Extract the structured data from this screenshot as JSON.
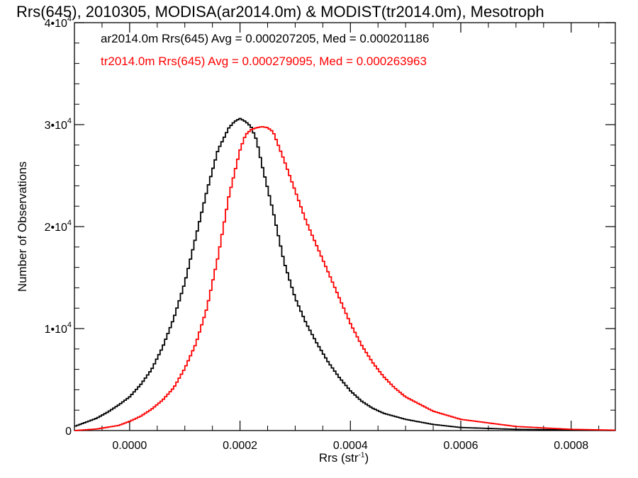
{
  "chart_data": {
    "type": "line",
    "title": "Rrs(645), 2010305, MODISA(ar2014.0m) & MODIST(tr2014.0m), Mesotroph",
    "xlabel": "Rrs (str",
    "xlabel_sup": "-1",
    "xlabel_end": ")",
    "ylabel": "Number of Observations",
    "xlim": [
      -0.0001,
      0.00088
    ],
    "ylim": [
      0,
      40000
    ],
    "x_ticks": [
      {
        "value": 0.0,
        "label": "0.0000"
      },
      {
        "value": 0.0002,
        "label": "0.0002"
      },
      {
        "value": 0.0004,
        "label": "0.0004"
      },
      {
        "value": 0.0006,
        "label": "0.0006"
      },
      {
        "value": 0.0008,
        "label": "0.0008"
      }
    ],
    "y_ticks": [
      {
        "value": 0,
        "mant": "0",
        "exp": ""
      },
      {
        "value": 10000,
        "mant": "1•10",
        "exp": "4"
      },
      {
        "value": 20000,
        "mant": "2•10",
        "exp": "4"
      },
      {
        "value": 30000,
        "mant": "3•10",
        "exp": "4"
      },
      {
        "value": 40000,
        "mant": "4•10",
        "exp": "4"
      }
    ],
    "grid": false,
    "legend_position": "top-left",
    "series": [
      {
        "name": "ar2014.0m Rrs(645) Avg = 0.000207205, Med = 0.000201186",
        "color": "#000000",
        "x": [
          -0.0001,
          -8e-05,
          -6e-05,
          -4e-05,
          -2e-05,
          0.0,
          2e-05,
          4e-05,
          6e-05,
          8e-05,
          0.0001,
          0.00012,
          0.00014,
          0.00016,
          0.00018,
          0.00019,
          0.0002,
          0.00021,
          0.00022,
          0.00023,
          0.00024,
          0.00026,
          0.00028,
          0.0003,
          0.00032,
          0.00034,
          0.00036,
          0.00038,
          0.0004,
          0.00042,
          0.00044,
          0.00046,
          0.0005,
          0.00055,
          0.0006,
          0.0007,
          0.00088
        ],
        "y": [
          400,
          800,
          1200,
          1800,
          2500,
          3300,
          4500,
          6000,
          8200,
          11000,
          14500,
          19000,
          23500,
          27500,
          29700,
          30300,
          30600,
          30300,
          29800,
          28500,
          26000,
          21500,
          16500,
          13000,
          10500,
          8500,
          6700,
          5200,
          3900,
          2900,
          2200,
          1700,
          1100,
          600,
          300,
          120,
          30
        ]
      },
      {
        "name": "tr2014.0m Rrs(645) Avg = 0.000279095, Med = 0.000263963",
        "color": "#ff0000",
        "x": [
          -0.0001,
          -6e-05,
          -2e-05,
          0.0,
          2e-05,
          4e-05,
          6e-05,
          8e-05,
          0.0001,
          0.00012,
          0.00014,
          0.00016,
          0.00018,
          0.0002,
          0.00021,
          0.00022,
          0.00023,
          0.00024,
          0.00025,
          0.00026,
          0.00028,
          0.0003,
          0.00032,
          0.00034,
          0.00036,
          0.00038,
          0.0004,
          0.00042,
          0.00044,
          0.00046,
          0.00048,
          0.0005,
          0.00055,
          0.0006,
          0.0007,
          0.0008,
          0.00088
        ],
        "y": [
          0,
          150,
          500,
          900,
          1400,
          2100,
          3000,
          4200,
          6100,
          8500,
          12000,
          17000,
          23000,
          27500,
          29000,
          29500,
          29700,
          29800,
          29700,
          29300,
          26500,
          23500,
          20500,
          18000,
          15500,
          13000,
          10500,
          8400,
          6700,
          5300,
          4200,
          3300,
          1900,
          1100,
          400,
          120,
          40
        ]
      }
    ]
  }
}
